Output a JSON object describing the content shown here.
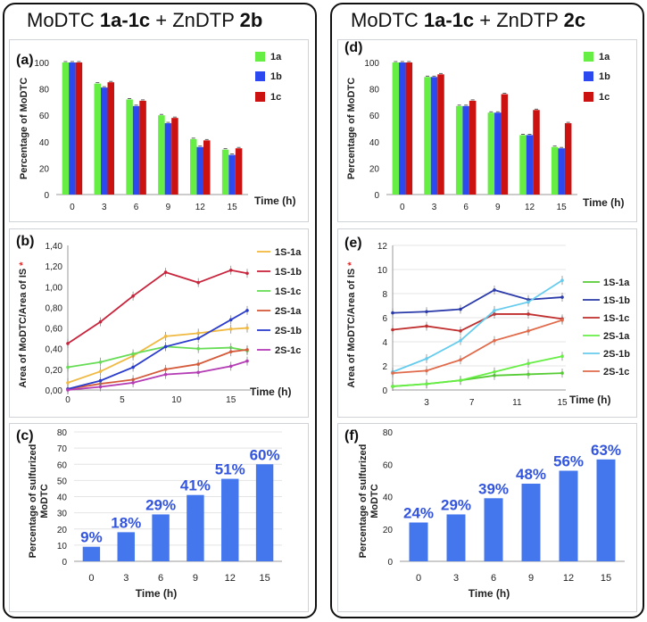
{
  "panels": [
    {
      "title": {
        "prefix": "MoDTC ",
        "bold1": "1a-1c",
        "mid": " + ZnDTP ",
        "bold2": "2b"
      }
    },
    {
      "title": {
        "prefix": "MoDTC ",
        "bold1": "1a-1c",
        "mid": " + ZnDTP ",
        "bold2": "2c"
      }
    }
  ],
  "colors": {
    "c1a": "#66ee44",
    "c1b": "#2b49ee",
    "c1c": "#cc1111",
    "l1S1a": "#f0b942",
    "l1S1b": "#c8243c",
    "l1S1c": "#66dd55",
    "l2S1a": "#d45a3a",
    "l2S1b": "#2a3ccc",
    "l2S1c": "#b43cb4",
    "r1S1a": "#55cc33",
    "r1S1b": "#2a3aaa",
    "r1S1c": "#c02e2e",
    "r2S1a": "#66ee44",
    "r2S1b": "#66ccee",
    "r2S1c": "#e06a4a",
    "pct_bar": "#4477ee",
    "pct_label": "#3355dd",
    "red_star": "#ee2222"
  },
  "chart_data": [
    {
      "id": "a",
      "type": "bar",
      "label": "(a)",
      "ylabel": "Percentage of MoDTC",
      "xlabel": "Time (h)",
      "categories": [
        "0",
        "3",
        "6",
        "9",
        "12",
        "15"
      ],
      "ylim": [
        0,
        100
      ],
      "yticks": [
        "0",
        "20",
        "40",
        "60",
        "80",
        "100"
      ],
      "series": [
        {
          "name": "1a",
          "values": [
            100,
            84,
            72,
            60,
            42,
            34
          ]
        },
        {
          "name": "1b",
          "values": [
            100,
            81,
            67,
            54,
            36,
            30
          ]
        },
        {
          "name": "1c",
          "values": [
            100,
            85,
            71,
            58,
            41,
            35
          ]
        }
      ]
    },
    {
      "id": "b",
      "type": "line",
      "label": "(b)",
      "ylabel": "Area of MoDTC/Area of IS",
      "star": "*",
      "xlabel": "Time (h)",
      "x": [
        0,
        3,
        6,
        9,
        12,
        15,
        16.5
      ],
      "xticks": [
        "0",
        "5",
        "10",
        "15"
      ],
      "xtick_values": [
        0,
        5,
        10,
        15
      ],
      "ylim": [
        0,
        1.4
      ],
      "yticks": [
        "0,00",
        "0,20",
        "0,40",
        "0,60",
        "0,80",
        "1,00",
        "1,20",
        "1,40"
      ],
      "series": [
        {
          "name": "1S-1a",
          "values": [
            0.07,
            0.18,
            0.33,
            0.52,
            0.55,
            0.59,
            0.6
          ]
        },
        {
          "name": "1S-1b",
          "values": [
            0.45,
            0.66,
            0.91,
            1.14,
            1.04,
            1.16,
            1.13
          ]
        },
        {
          "name": "1S-1c",
          "values": [
            0.22,
            0.27,
            0.35,
            0.42,
            0.4,
            0.41,
            0.38
          ]
        },
        {
          "name": "2S-1a",
          "values": [
            0.01,
            0.06,
            0.1,
            0.2,
            0.25,
            0.37,
            0.39
          ]
        },
        {
          "name": "2S-1b",
          "values": [
            0.01,
            0.09,
            0.22,
            0.42,
            0.5,
            0.68,
            0.77
          ]
        },
        {
          "name": "2S-1c",
          "values": [
            0.0,
            0.03,
            0.07,
            0.15,
            0.17,
            0.23,
            0.28
          ]
        }
      ]
    },
    {
      "id": "c",
      "type": "bar",
      "label": "(c)",
      "ylabel": "Percentage of sulfurized MoDTC",
      "xlabel": "Time (h)",
      "categories": [
        "0",
        "3",
        "6",
        "9",
        "12",
        "15"
      ],
      "ylim": [
        0,
        80
      ],
      "yticks": [
        "0",
        "10",
        "20",
        "30",
        "40",
        "50",
        "60",
        "70",
        "80"
      ],
      "values": [
        9,
        18,
        29,
        41,
        51,
        60
      ],
      "data_labels": [
        "9%",
        "18%",
        "29%",
        "41%",
        "51%",
        "60%"
      ]
    },
    {
      "id": "d",
      "type": "bar",
      "label": "(d)",
      "ylabel": "Percentage of MoDTC",
      "xlabel": "Time (h)",
      "categories": [
        "0",
        "3",
        "6",
        "9",
        "12",
        "15"
      ],
      "ylim": [
        0,
        100
      ],
      "yticks": [
        "0",
        "10",
        "20",
        "30",
        "40",
        "50",
        "60",
        "70",
        "80",
        "90",
        "100"
      ],
      "ytick_labels_shown": [
        "0",
        "20",
        "40",
        "60",
        "80",
        "100"
      ],
      "series": [
        {
          "name": "1a",
          "values": [
            100,
            89,
            67,
            62,
            45,
            36
          ]
        },
        {
          "name": "1b",
          "values": [
            100,
            89,
            67,
            62,
            45,
            35
          ]
        },
        {
          "name": "1c",
          "values": [
            100,
            91,
            71,
            76,
            64,
            54
          ]
        }
      ]
    },
    {
      "id": "e",
      "type": "line",
      "label": "(e)",
      "ylabel": "Area of MoDTC/Area of IS",
      "star": "*",
      "xlabel": "Time (h)",
      "x": [
        0,
        3,
        6,
        9,
        12,
        15
      ],
      "xticks": [
        "3",
        "7",
        "11",
        "15"
      ],
      "xtick_values": [
        3,
        7,
        11,
        15
      ],
      "ylim": [
        0,
        12
      ],
      "yticks": [
        "0",
        "2",
        "4",
        "6",
        "8",
        "10",
        "12"
      ],
      "series": [
        {
          "name": "1S-1a",
          "values": [
            0.3,
            0.5,
            0.8,
            1.2,
            1.3,
            1.4
          ]
        },
        {
          "name": "1S-1b",
          "values": [
            6.4,
            6.5,
            6.7,
            8.3,
            7.5,
            7.7
          ]
        },
        {
          "name": "1S-1c",
          "values": [
            5.0,
            5.3,
            4.9,
            6.3,
            6.3,
            5.9
          ]
        },
        {
          "name": "2S-1a",
          "values": [
            0.3,
            0.5,
            0.8,
            1.5,
            2.2,
            2.8
          ]
        },
        {
          "name": "2S-1b",
          "values": [
            1.5,
            2.6,
            4.1,
            6.6,
            7.3,
            9.1
          ]
        },
        {
          "name": "2S-1c",
          "values": [
            1.4,
            1.6,
            2.5,
            4.1,
            4.9,
            5.8
          ]
        }
      ]
    },
    {
      "id": "f",
      "type": "bar",
      "label": "(f)",
      "ylabel": "Percentage of sulfurized MoDTC",
      "xlabel": "Time (h)",
      "categories": [
        "0",
        "3",
        "6",
        "9",
        "12",
        "15"
      ],
      "ylim": [
        0,
        80
      ],
      "yticks": [
        "0",
        "20",
        "40",
        "60",
        "80"
      ],
      "values": [
        24,
        29,
        39,
        48,
        56,
        63
      ],
      "data_labels": [
        "24%",
        "29%",
        "39%",
        "48%",
        "56%",
        "63%"
      ]
    }
  ]
}
